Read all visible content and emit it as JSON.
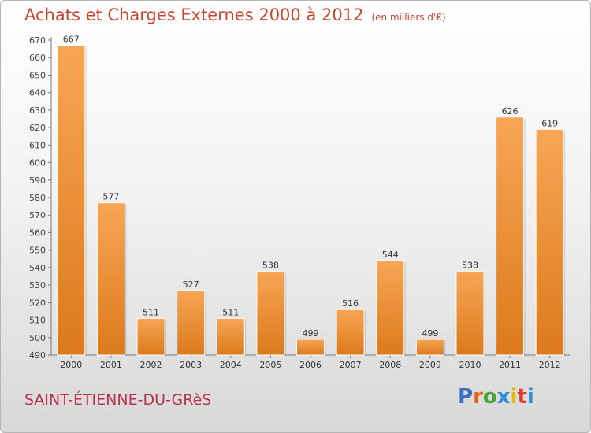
{
  "title": "Achats et Charges Externes 2000 à 2012",
  "subtitle": "(en milliers d'€)",
  "city": "SAINT-ÉTIENNE-DU-GRèS",
  "logo": {
    "text": "Proxiti",
    "letter_colors": [
      "#3d6fc2",
      "#e9641b",
      "#4aa33b",
      "#2d8fd5",
      "#e4b90c",
      "#e13c2f",
      "#2d8fd5"
    ]
  },
  "colors": {
    "bar_top": "#f7a655",
    "bar_bottom": "#dc7a1c",
    "title": "#c7442f",
    "city": "#b8334f"
  },
  "chart_data": {
    "type": "bar",
    "categories": [
      "2000",
      "2001",
      "2002",
      "2003",
      "2004",
      "2005",
      "2006",
      "2007",
      "2008",
      "2009",
      "2010",
      "2011",
      "2012"
    ],
    "values": [
      667,
      577,
      511,
      527,
      511,
      538,
      499,
      516,
      544,
      499,
      538,
      626,
      619
    ],
    "title": "Achats et Charges Externes 2000 à 2012",
    "ylim": [
      490,
      670
    ],
    "yticks": [
      490,
      500,
      510,
      520,
      530,
      540,
      550,
      560,
      570,
      580,
      590,
      600,
      610,
      620,
      630,
      640,
      650,
      660,
      670
    ],
    "grid": false,
    "data_labels": true
  }
}
